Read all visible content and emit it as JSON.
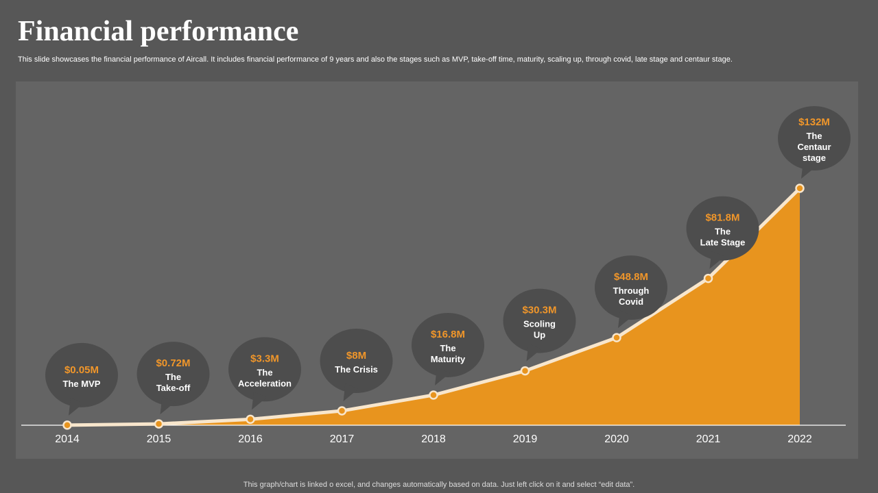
{
  "slide": {
    "title": "Financial performance",
    "subtitle": "This slide showcases the financial performance of Aircall. It includes financial performance of 9 years and also the stages such as MVP, take-off time, maturity, scaling up, through covid, late stage and centaur stage.",
    "footer": "This graph/chart is linked o excel, and changes automatically based on data. Just left click on it and select “edit data”."
  },
  "colors": {
    "background": "#575757",
    "panel": "#646464",
    "area": "#E8941E",
    "line": "#F8E6CC",
    "bubble": "#4D4D4D",
    "value_text": "#F0962A",
    "label_text": "#FFFFFF",
    "axis": "#FFFFFF"
  },
  "chart_data": {
    "type": "area",
    "categories": [
      "2014",
      "2015",
      "2016",
      "2017",
      "2018",
      "2019",
      "2020",
      "2021",
      "2022"
    ],
    "values": [
      0.05,
      0.72,
      3.3,
      8,
      16.8,
      30.3,
      48.8,
      81.8,
      132
    ],
    "ylabel_unit": "$M",
    "annotations": [
      {
        "value": "$0.05M",
        "label": [
          "The MVP"
        ]
      },
      {
        "value": "$0.72M",
        "label": [
          "The",
          "Take-off"
        ]
      },
      {
        "value": "$3.3M",
        "label": [
          "The",
          "Acceleration"
        ]
      },
      {
        "value": "$8M",
        "label": [
          "The Crisis"
        ]
      },
      {
        "value": "$16.8M",
        "label": [
          "The",
          "Maturity"
        ]
      },
      {
        "value": "$30.3M",
        "label": [
          "Scoling",
          "Up"
        ]
      },
      {
        "value": "$48.8M",
        "label": [
          "Through",
          "Covid"
        ]
      },
      {
        "value": "$81.8M",
        "label": [
          "The",
          "Late Stage"
        ]
      },
      {
        "value": "$132M",
        "label": [
          "The",
          "Centaur",
          "stage"
        ]
      }
    ],
    "grid": false,
    "legend": "none"
  }
}
